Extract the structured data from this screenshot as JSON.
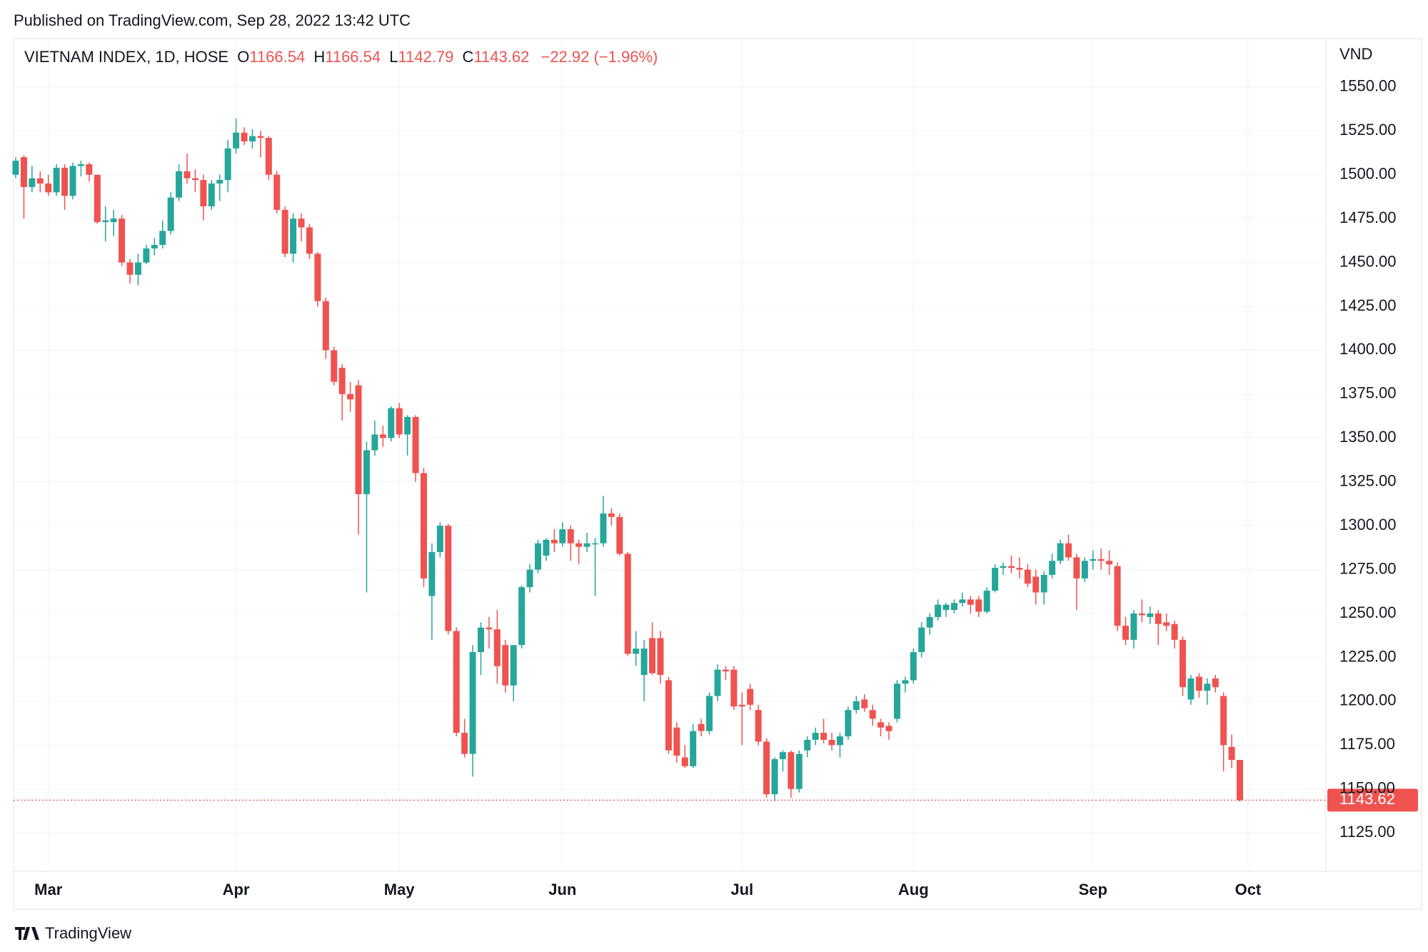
{
  "chart_data": {
    "type": "candlestick",
    "published": "Published on TradingView.com, Sep 28, 2022 13:42 UTC",
    "symbol": "VIETNAM INDEX, 1D, HOSE",
    "ohlc_labels": [
      "O",
      "H",
      "L",
      "C"
    ],
    "change_label": "−22.92 (−1.96%)",
    "currency": "VND",
    "brand": "TradingView",
    "up_color": "#26a69a",
    "down_color": "#ef5350",
    "grid": true,
    "categories": [
      null,
      null,
      null,
      null,
      "Mar",
      null,
      null,
      null,
      null,
      null,
      null,
      null,
      null,
      null,
      null,
      null,
      null,
      null,
      null,
      null,
      null,
      null,
      null,
      null,
      null,
      null,
      null,
      "Apr",
      null,
      null,
      null,
      null,
      null,
      null,
      null,
      null,
      null,
      null,
      null,
      null,
      null,
      null,
      null,
      null,
      null,
      null,
      null,
      "May",
      null,
      null,
      null,
      null,
      null,
      null,
      null,
      null,
      null,
      null,
      null,
      null,
      null,
      null,
      null,
      null,
      null,
      null,
      null,
      "Jun",
      null,
      null,
      null,
      null,
      null,
      null,
      null,
      null,
      null,
      null,
      null,
      null,
      null,
      null,
      null,
      null,
      null,
      null,
      null,
      null,
      null,
      "Jul",
      null,
      null,
      null,
      null,
      null,
      null,
      null,
      null,
      null,
      null,
      null,
      null,
      null,
      null,
      null,
      null,
      null,
      null,
      null,
      null,
      "Aug",
      null,
      null,
      null,
      null,
      null,
      null,
      null,
      null,
      null,
      null,
      null,
      null,
      null,
      null,
      null,
      null,
      null,
      null,
      null,
      null,
      null,
      "Sep",
      null,
      null,
      null,
      null,
      null,
      null,
      null,
      null,
      null,
      null,
      null,
      null,
      null,
      null,
      null,
      null,
      null,
      null,
      "Oct"
    ],
    "ohlc": [
      [
        1500,
        1510,
        1498,
        1508
      ],
      [
        1510,
        1511,
        1475,
        1493
      ],
      [
        1493,
        1505,
        1490,
        1498
      ],
      [
        1498,
        1502,
        1490,
        1495
      ],
      [
        1495,
        1500,
        1488,
        1490
      ],
      [
        1490,
        1506,
        1488,
        1504
      ],
      [
        1504,
        1506,
        1480,
        1488
      ],
      [
        1488,
        1507,
        1486,
        1505
      ],
      [
        1505,
        1508,
        1499,
        1506
      ],
      [
        1506,
        1507,
        1496,
        1500
      ],
      [
        1500,
        1500,
        1472,
        1473
      ],
      [
        1473,
        1482,
        1462,
        1474
      ],
      [
        1473,
        1480,
        1465,
        1475
      ],
      [
        1475,
        1477,
        1448,
        1450
      ],
      [
        1450,
        1452,
        1438,
        1443
      ],
      [
        1443,
        1455,
        1437,
        1450
      ],
      [
        1450,
        1460,
        1449,
        1458
      ],
      [
        1458,
        1464,
        1454,
        1460
      ],
      [
        1460,
        1474,
        1458,
        1468
      ],
      [
        1468,
        1490,
        1466,
        1487
      ],
      [
        1487,
        1506,
        1485,
        1502
      ],
      [
        1502,
        1512,
        1495,
        1498
      ],
      [
        1498,
        1503,
        1490,
        1497
      ],
      [
        1497,
        1500,
        1474,
        1482
      ],
      [
        1482,
        1497,
        1480,
        1495
      ],
      [
        1495,
        1500,
        1485,
        1497
      ],
      [
        1497,
        1520,
        1490,
        1515
      ],
      [
        1515,
        1532,
        1512,
        1524
      ],
      [
        1524,
        1527,
        1517,
        1519
      ],
      [
        1519,
        1526,
        1515,
        1522
      ],
      [
        1522,
        1525,
        1510,
        1521
      ],
      [
        1521,
        1522,
        1497,
        1500
      ],
      [
        1500,
        1502,
        1478,
        1480
      ],
      [
        1480,
        1482,
        1453,
        1455
      ],
      [
        1455,
        1478,
        1450,
        1475
      ],
      [
        1475,
        1478,
        1462,
        1470
      ],
      [
        1470,
        1472,
        1452,
        1455
      ],
      [
        1455,
        1456,
        1425,
        1428
      ],
      [
        1428,
        1430,
        1395,
        1400
      ],
      [
        1400,
        1402,
        1380,
        1382
      ],
      [
        1390,
        1392,
        1360,
        1375
      ],
      [
        1375,
        1382,
        1365,
        1372
      ],
      [
        1380,
        1383,
        1295,
        1318
      ],
      [
        1318,
        1348,
        1262,
        1343
      ],
      [
        1343,
        1360,
        1340,
        1352
      ],
      [
        1352,
        1357,
        1345,
        1350
      ],
      [
        1350,
        1368,
        1348,
        1367
      ],
      [
        1367,
        1370,
        1350,
        1352
      ],
      [
        1352,
        1363,
        1340,
        1362
      ],
      [
        1362,
        1363,
        1325,
        1330
      ],
      [
        1330,
        1333,
        1265,
        1270
      ],
      [
        1260,
        1290,
        1235,
        1285
      ],
      [
        1285,
        1302,
        1282,
        1300
      ],
      [
        1300,
        1301,
        1238,
        1240
      ],
      [
        1240,
        1242,
        1180,
        1182
      ],
      [
        1182,
        1190,
        1168,
        1170
      ],
      [
        1170,
        1232,
        1157,
        1228
      ],
      [
        1228,
        1245,
        1215,
        1242
      ],
      [
        1242,
        1248,
        1230,
        1241
      ],
      [
        1241,
        1252,
        1210,
        1220
      ],
      [
        1232,
        1235,
        1205,
        1209
      ],
      [
        1209,
        1232,
        1200,
        1232
      ],
      [
        1232,
        1266,
        1230,
        1265
      ],
      [
        1265,
        1278,
        1262,
        1275
      ],
      [
        1275,
        1292,
        1273,
        1290
      ],
      [
        1283,
        1293,
        1280,
        1292
      ],
      [
        1292,
        1298,
        1285,
        1290
      ],
      [
        1290,
        1302,
        1288,
        1298
      ],
      [
        1298,
        1300,
        1280,
        1290
      ],
      [
        1290,
        1292,
        1278,
        1288
      ],
      [
        1288,
        1296,
        1285,
        1290
      ],
      [
        1290,
        1293,
        1260,
        1290
      ],
      [
        1290,
        1317,
        1288,
        1307
      ],
      [
        1307,
        1310,
        1300,
        1305
      ],
      [
        1305,
        1307,
        1283,
        1284
      ],
      [
        1284,
        1285,
        1226,
        1227
      ],
      [
        1227,
        1240,
        1220,
        1230
      ],
      [
        1215,
        1235,
        1200,
        1230
      ],
      [
        1236,
        1245,
        1215,
        1216
      ],
      [
        1236,
        1240,
        1210,
        1215
      ],
      [
        1212,
        1214,
        1170,
        1172
      ],
      [
        1185,
        1188,
        1165,
        1169
      ],
      [
        1168,
        1175,
        1162,
        1163
      ],
      [
        1163,
        1187,
        1162,
        1183
      ],
      [
        1187,
        1190,
        1180,
        1183
      ],
      [
        1183,
        1205,
        1181,
        1203
      ],
      [
        1203,
        1221,
        1200,
        1218
      ],
      [
        1218,
        1220,
        1212,
        1217
      ],
      [
        1218,
        1220,
        1195,
        1197
      ],
      [
        1198,
        1205,
        1175,
        1197
      ],
      [
        1207,
        1210,
        1195,
        1198
      ],
      [
        1195,
        1198,
        1175,
        1177
      ],
      [
        1177,
        1179,
        1145,
        1147
      ],
      [
        1147,
        1168,
        1143,
        1167
      ],
      [
        1167,
        1172,
        1160,
        1171
      ],
      [
        1171,
        1172,
        1145,
        1150
      ],
      [
        1150,
        1172,
        1148,
        1170
      ],
      [
        1172,
        1180,
        1168,
        1178
      ],
      [
        1178,
        1185,
        1175,
        1182
      ],
      [
        1182,
        1190,
        1176,
        1178
      ],
      [
        1178,
        1182,
        1172,
        1175
      ],
      [
        1175,
        1182,
        1168,
        1180
      ],
      [
        1180,
        1197,
        1178,
        1195
      ],
      [
        1195,
        1203,
        1193,
        1200
      ],
      [
        1201,
        1204,
        1194,
        1196
      ],
      [
        1195,
        1198,
        1186,
        1190
      ],
      [
        1188,
        1190,
        1180,
        1185
      ],
      [
        1186,
        1188,
        1178,
        1183
      ],
      [
        1190,
        1212,
        1188,
        1210
      ],
      [
        1210,
        1214,
        1205,
        1212
      ],
      [
        1212,
        1230,
        1210,
        1228
      ],
      [
        1228,
        1245,
        1225,
        1242
      ],
      [
        1242,
        1250,
        1238,
        1248
      ],
      [
        1248,
        1258,
        1246,
        1255
      ],
      [
        1252,
        1256,
        1248,
        1255
      ],
      [
        1252,
        1258,
        1250,
        1256
      ],
      [
        1256,
        1262,
        1254,
        1258
      ],
      [
        1258,
        1260,
        1250,
        1255
      ],
      [
        1258,
        1260,
        1248,
        1251
      ],
      [
        1251,
        1265,
        1250,
        1263
      ],
      [
        1263,
        1278,
        1262,
        1276
      ],
      [
        1276,
        1279,
        1272,
        1277
      ],
      [
        1277,
        1283,
        1273,
        1276
      ],
      [
        1276,
        1282,
        1270,
        1275
      ],
      [
        1275,
        1278,
        1265,
        1267
      ],
      [
        1271,
        1275,
        1255,
        1262
      ],
      [
        1262,
        1274,
        1255,
        1272
      ],
      [
        1272,
        1284,
        1270,
        1280
      ],
      [
        1280,
        1292,
        1278,
        1290
      ],
      [
        1290,
        1295,
        1280,
        1282
      ],
      [
        1282,
        1284,
        1252,
        1270
      ],
      [
        1270,
        1282,
        1268,
        1280
      ],
      [
        1280,
        1286,
        1275,
        1281
      ],
      [
        1281,
        1287,
        1275,
        1280
      ],
      [
        1280,
        1286,
        1272,
        1278
      ],
      [
        1277,
        1279,
        1240,
        1243
      ],
      [
        1243,
        1248,
        1232,
        1235
      ],
      [
        1235,
        1252,
        1230,
        1250
      ],
      [
        1250,
        1258,
        1245,
        1249
      ],
      [
        1248,
        1254,
        1244,
        1250
      ],
      [
        1250,
        1252,
        1232,
        1244
      ],
      [
        1245,
        1250,
        1240,
        1243
      ],
      [
        1244,
        1246,
        1230,
        1235
      ],
      [
        1235,
        1237,
        1203,
        1208
      ],
      [
        1201,
        1215,
        1198,
        1213
      ],
      [
        1214,
        1216,
        1202,
        1206
      ],
      [
        1206,
        1213,
        1198,
        1210
      ],
      [
        1213,
        1215,
        1205,
        1208
      ],
      [
        1203,
        1205,
        1160,
        1175
      ],
      [
        1174,
        1181,
        1162,
        1166.54
      ],
      [
        1166.54,
        1166.54,
        1142.79,
        1143.62
      ],
      null,
      null,
      null
    ],
    "ylim": [
      1103.1,
      1577.6
    ],
    "yticks": [
      {
        "value": 1125,
        "label": "1125.00"
      },
      {
        "value": 1150,
        "label": "1150.00"
      },
      {
        "value": 1175,
        "label": "1175.00"
      },
      {
        "value": 1200,
        "label": "1200.00"
      },
      {
        "value": 1225,
        "label": "1225.00"
      },
      {
        "value": 1250,
        "label": "1250.00"
      },
      {
        "value": 1275,
        "label": "1275.00"
      },
      {
        "value": 1300,
        "label": "1300.00"
      },
      {
        "value": 1325,
        "label": "1325.00"
      },
      {
        "value": 1350,
        "label": "1350.00"
      },
      {
        "value": 1375,
        "label": "1375.00"
      },
      {
        "value": 1400,
        "label": "1400.00"
      },
      {
        "value": 1425,
        "label": "1425.00"
      },
      {
        "value": 1450,
        "label": "1450.00"
      },
      {
        "value": 1475,
        "label": "1475.00"
      },
      {
        "value": 1500,
        "label": "1500.00"
      },
      {
        "value": 1525,
        "label": "1525.00"
      },
      {
        "value": 1550,
        "label": "1550.00"
      }
    ]
  }
}
